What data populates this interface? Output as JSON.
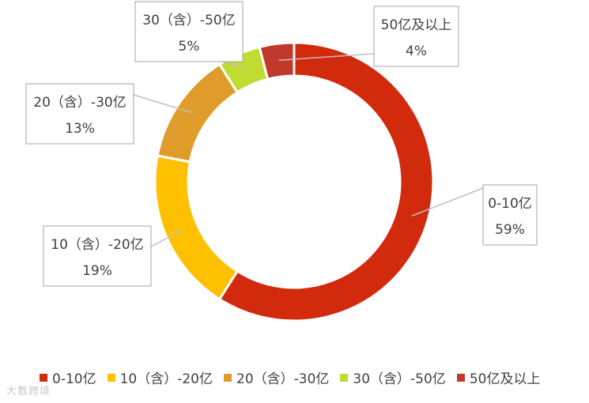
{
  "chart_data": {
    "type": "pie",
    "donut": true,
    "categories": [
      "0-10亿",
      "10（含）-20亿",
      "20（含）-30亿",
      "30（含）-50亿",
      "50亿及以上"
    ],
    "values": [
      59,
      19,
      13,
      5,
      4
    ],
    "value_labels": [
      "59%",
      "19%",
      "13%",
      "5%",
      "4%"
    ],
    "colors": [
      "#d12a0d",
      "#ffc000",
      "#e09c2a",
      "#c0dc31",
      "#c0392b"
    ],
    "legend_position": "bottom"
  },
  "watermark": "大数跨境"
}
